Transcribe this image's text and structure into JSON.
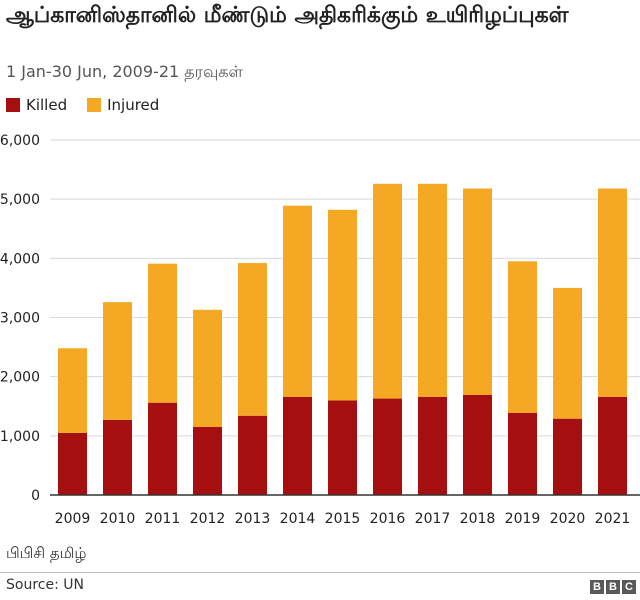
{
  "header": {
    "title": "ஆப்கானிஸ்தானில் மீண்டும் அதிகரிக்கும் உயிரிழப்புகள்",
    "subtitle": "1 Jan-30 Jun, 2009-21 தரவுகள்"
  },
  "footer": {
    "label": "பிபிசி தமிழ்",
    "source": "Source: UN",
    "logo_letters": [
      "B",
      "B",
      "C"
    ]
  },
  "colors": {
    "killed": "#a50f0f",
    "injured": "#f5a823",
    "axis": "#333333",
    "grid": "#d9d9d9"
  },
  "chart_data": {
    "type": "bar",
    "stacked": true,
    "categories": [
      "2009",
      "2010",
      "2011",
      "2012",
      "2013",
      "2014",
      "2015",
      "2016",
      "2017",
      "2018",
      "2019",
      "2020",
      "2021"
    ],
    "series": [
      {
        "name": "Killed",
        "values": [
          1050,
          1270,
          1560,
          1150,
          1340,
          1660,
          1600,
          1630,
          1660,
          1690,
          1390,
          1290,
          1660
        ]
      },
      {
        "name": "Injured",
        "values": [
          1430,
          1990,
          2350,
          1980,
          2580,
          3230,
          3220,
          3630,
          3600,
          3490,
          2560,
          2210,
          3520
        ]
      }
    ],
    "ylim": [
      0,
      6000
    ],
    "yticks": [
      0,
      1000,
      2000,
      3000,
      4000,
      5000,
      6000
    ],
    "ytick_labels": [
      "0",
      "1,000",
      "2,000",
      "3,000",
      "4,000",
      "5,000",
      "6,000"
    ],
    "grid": true,
    "legend_position": "top-left"
  }
}
